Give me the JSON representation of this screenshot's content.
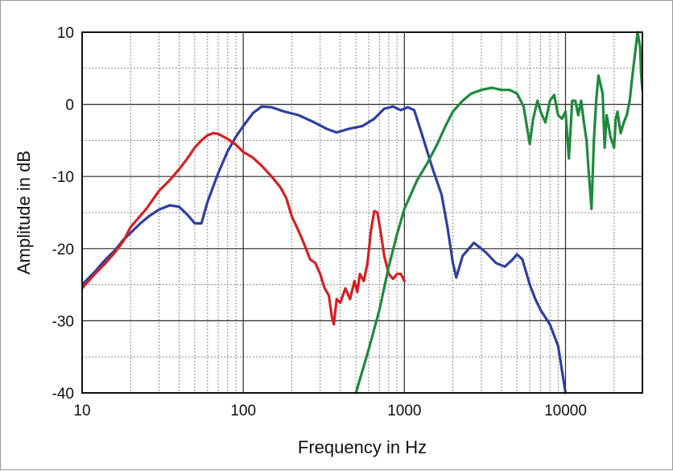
{
  "chart_data": {
    "type": "line",
    "title": "",
    "xlabel": "Frequency in Hz",
    "ylabel": "Amplitude in dB",
    "x_scale": "log",
    "xlim": [
      10,
      30000
    ],
    "ylim": [
      -40,
      10
    ],
    "grid": true,
    "x_ticks": [
      10,
      100,
      1000,
      10000
    ],
    "x_tick_labels": [
      "10",
      "100",
      "1000",
      "10000"
    ],
    "y_ticks": [
      10,
      0,
      -10,
      -20,
      -30,
      -40
    ],
    "y_tick_labels": [
      "10",
      "0",
      "-10",
      "-20",
      "-30",
      "-40"
    ],
    "series": [
      {
        "color": "#2f3fa0",
        "points": [
          [
            10,
            -25
          ],
          [
            12,
            -23.2
          ],
          [
            14,
            -21.5
          ],
          [
            16,
            -20.2
          ],
          [
            18,
            -18.8
          ],
          [
            20,
            -17.8
          ],
          [
            23,
            -16.5
          ],
          [
            26,
            -15.5
          ],
          [
            30,
            -14.6
          ],
          [
            35,
            -14
          ],
          [
            40,
            -14.2
          ],
          [
            45,
            -15.3
          ],
          [
            50,
            -16.5
          ],
          [
            55,
            -16.5
          ],
          [
            60,
            -13.5
          ],
          [
            70,
            -9.5
          ],
          [
            80,
            -6.5
          ],
          [
            90,
            -4.5
          ],
          [
            100,
            -3
          ],
          [
            115,
            -1.2
          ],
          [
            130,
            -0.3
          ],
          [
            150,
            -0.4
          ],
          [
            180,
            -1
          ],
          [
            220,
            -1.5
          ],
          [
            270,
            -2.4
          ],
          [
            330,
            -3.4
          ],
          [
            380,
            -3.9
          ],
          [
            450,
            -3.4
          ],
          [
            550,
            -3
          ],
          [
            650,
            -2
          ],
          [
            750,
            -0.6
          ],
          [
            850,
            -0.3
          ],
          [
            950,
            -0.8
          ],
          [
            1050,
            -0.4
          ],
          [
            1150,
            -0.8
          ],
          [
            1300,
            -4.5
          ],
          [
            1500,
            -9
          ],
          [
            1700,
            -12.5
          ],
          [
            1850,
            -17
          ],
          [
            2000,
            -22
          ],
          [
            2100,
            -24
          ],
          [
            2300,
            -21
          ],
          [
            2700,
            -19.2
          ],
          [
            3200,
            -20.5
          ],
          [
            3700,
            -22
          ],
          [
            4200,
            -22.5
          ],
          [
            4700,
            -21.5
          ],
          [
            5000,
            -20.8
          ],
          [
            5400,
            -21.5
          ],
          [
            6000,
            -25
          ],
          [
            6500,
            -27
          ],
          [
            7000,
            -28.5
          ],
          [
            8000,
            -30.5
          ],
          [
            9000,
            -33.5
          ],
          [
            10000,
            -40
          ]
        ]
      },
      {
        "color": "#d62024",
        "points": [
          [
            10,
            -25.5
          ],
          [
            12,
            -23.5
          ],
          [
            14,
            -22
          ],
          [
            16,
            -20.5
          ],
          [
            18,
            -19
          ],
          [
            20,
            -17
          ],
          [
            25,
            -14.5
          ],
          [
            30,
            -12
          ],
          [
            35,
            -10.5
          ],
          [
            40,
            -9
          ],
          [
            45,
            -7.5
          ],
          [
            50,
            -6
          ],
          [
            55,
            -5
          ],
          [
            60,
            -4.3
          ],
          [
            65,
            -4
          ],
          [
            70,
            -4.1
          ],
          [
            80,
            -4.8
          ],
          [
            90,
            -5.6
          ],
          [
            100,
            -6.6
          ],
          [
            115,
            -7.4
          ],
          [
            130,
            -8.5
          ],
          [
            150,
            -10
          ],
          [
            170,
            -11.5
          ],
          [
            185,
            -13
          ],
          [
            200,
            -15.5
          ],
          [
            220,
            -17.5
          ],
          [
            240,
            -19.5
          ],
          [
            260,
            -21.5
          ],
          [
            280,
            -22
          ],
          [
            300,
            -23.5
          ],
          [
            320,
            -25.5
          ],
          [
            340,
            -26.5
          ],
          [
            355,
            -29.5
          ],
          [
            365,
            -30.5
          ],
          [
            380,
            -27
          ],
          [
            400,
            -27.5
          ],
          [
            430,
            -25.5
          ],
          [
            460,
            -27
          ],
          [
            490,
            -24.5
          ],
          [
            510,
            -26
          ],
          [
            530,
            -23.5
          ],
          [
            560,
            -24.5
          ],
          [
            590,
            -22
          ],
          [
            620,
            -17.5
          ],
          [
            650,
            -14.8
          ],
          [
            680,
            -15
          ],
          [
            710,
            -17.5
          ],
          [
            750,
            -21
          ],
          [
            800,
            -23.5
          ],
          [
            850,
            -24.2
          ],
          [
            900,
            -23.5
          ],
          [
            950,
            -23.5
          ],
          [
            1000,
            -24.5
          ]
        ]
      },
      {
        "color": "#1e8a3c",
        "points": [
          [
            500,
            -40
          ],
          [
            600,
            -34
          ],
          [
            700,
            -28.5
          ],
          [
            800,
            -22.5
          ],
          [
            900,
            -18
          ],
          [
            1000,
            -14.5
          ],
          [
            1200,
            -10.5
          ],
          [
            1400,
            -8
          ],
          [
            1600,
            -5.5
          ],
          [
            1800,
            -3
          ],
          [
            2000,
            -1
          ],
          [
            2300,
            0.5
          ],
          [
            2600,
            1.5
          ],
          [
            3000,
            2
          ],
          [
            3500,
            2.3
          ],
          [
            4000,
            2
          ],
          [
            4500,
            2
          ],
          [
            5000,
            1.5
          ],
          [
            5500,
            -0.3
          ],
          [
            5800,
            -3.5
          ],
          [
            6000,
            -5.5
          ],
          [
            6300,
            -2
          ],
          [
            6700,
            0.5
          ],
          [
            7000,
            -1
          ],
          [
            7500,
            -2.5
          ],
          [
            8000,
            0.5
          ],
          [
            8500,
            1.3
          ],
          [
            9000,
            -1.5
          ],
          [
            9500,
            -2
          ],
          [
            10000,
            -1
          ],
          [
            10500,
            -7.5
          ],
          [
            11000,
            0.5
          ],
          [
            11500,
            0.5
          ],
          [
            12000,
            -1.5
          ],
          [
            12500,
            0.5
          ],
          [
            13000,
            -2.5
          ],
          [
            13500,
            -5
          ],
          [
            14000,
            -10
          ],
          [
            14500,
            -14.5
          ],
          [
            15000,
            -5
          ],
          [
            15500,
            0.5
          ],
          [
            16000,
            4
          ],
          [
            17000,
            1.5
          ],
          [
            17500,
            -6
          ],
          [
            18000,
            -1.5
          ],
          [
            19000,
            -4.5
          ],
          [
            20000,
            -6
          ],
          [
            20500,
            -2
          ],
          [
            21000,
            -1
          ],
          [
            22000,
            -4
          ],
          [
            23000,
            -2.5
          ],
          [
            24000,
            -1.5
          ],
          [
            25000,
            0.5
          ],
          [
            26000,
            4
          ],
          [
            27000,
            7
          ],
          [
            28000,
            10
          ],
          [
            29000,
            8
          ],
          [
            29500,
            4
          ],
          [
            30000,
            2
          ]
        ]
      }
    ]
  }
}
